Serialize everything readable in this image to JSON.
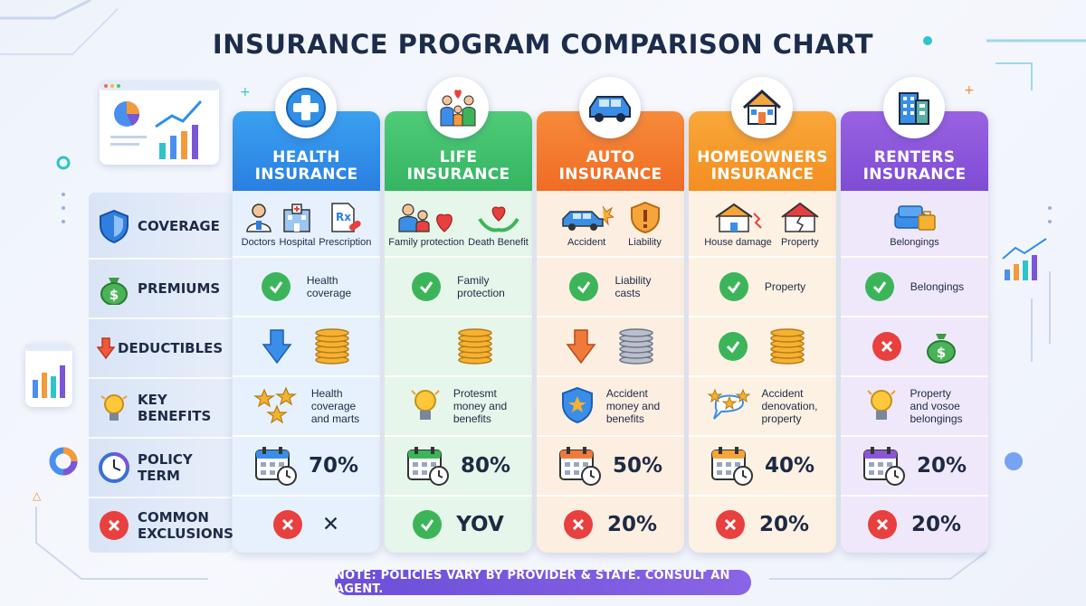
{
  "title": "INSURANCE PROGRAM COMPARISON CHART",
  "row_labels": {
    "coverage": "COVERAGE",
    "premiums": "PREMIUMS",
    "deductibles": "DEDUCTIBLES",
    "key_benefits_1": "KEY",
    "key_benefits_2": "BENEFITS",
    "policy_term_1": "POLICY",
    "policy_term_2": "TERM",
    "exclusions_1": "COMMON",
    "exclusions_2": "EXCLUSIONS"
  },
  "columns": {
    "health": {
      "name_1": "HEALTH",
      "name_2": "INSURANCE",
      "color": "#2f8fe6",
      "coverage": [
        "Doctors",
        "Hospital",
        "Prescription"
      ],
      "premium_1": "Health",
      "premium_2": "coverage",
      "deductible": [
        "down-arrow-icon",
        "coins-icon"
      ],
      "benefit": [
        "Health",
        "coverage",
        "and marts"
      ],
      "term": "70%",
      "exclusion": "✕"
    },
    "life": {
      "name_1": "LIFE",
      "name_2": "INSURANCE",
      "color": "#3fc06b",
      "coverage": [
        "Family protection",
        "Death Benefit"
      ],
      "premium_1": "Family",
      "premium_2": "protection",
      "deductible": [
        "coins-icon"
      ],
      "benefit": [
        "Protesmt",
        "money and",
        "benefits"
      ],
      "term": "80%",
      "exclusion": "YOV"
    },
    "auto": {
      "name_1": "AUTO",
      "name_2": "INSURANCE",
      "color": "#f27a2a",
      "coverage": [
        "Accident",
        "Liability"
      ],
      "premium_1": "Liability",
      "premium_2": "casts",
      "deductible": [
        "down-arrow-icon",
        "coins-icon"
      ],
      "benefit": [
        "Accident",
        "money and",
        "benefits"
      ],
      "term": "50%",
      "exclusion": "20%"
    },
    "home": {
      "name_1": "HOMEOWNERS",
      "name_2": "INSURANCE",
      "color": "#f59a2a",
      "coverage": [
        "House damage",
        "Property"
      ],
      "premium_1": "Property",
      "premium_2": "",
      "deductible": [
        "check-icon",
        "coins-icon"
      ],
      "benefit": [
        "Accident",
        "denovation,",
        "property"
      ],
      "term": "40%",
      "exclusion": "20%"
    },
    "renters": {
      "name_1": "RENTERS",
      "name_2": "INSURANCE",
      "color": "#8a56d8",
      "coverage": [
        "Belongings"
      ],
      "premium_1": "Belongings",
      "premium_2": "",
      "deductible": [
        "x-icon",
        "money-bag-icon"
      ],
      "benefit": [
        "Property",
        "and vosoe",
        "belongings"
      ],
      "term": "20%",
      "exclusion": "20%"
    }
  },
  "note": "NOTE: POLICIES VARY BY PROVIDER & STATE. CONSULT AN AGENT."
}
